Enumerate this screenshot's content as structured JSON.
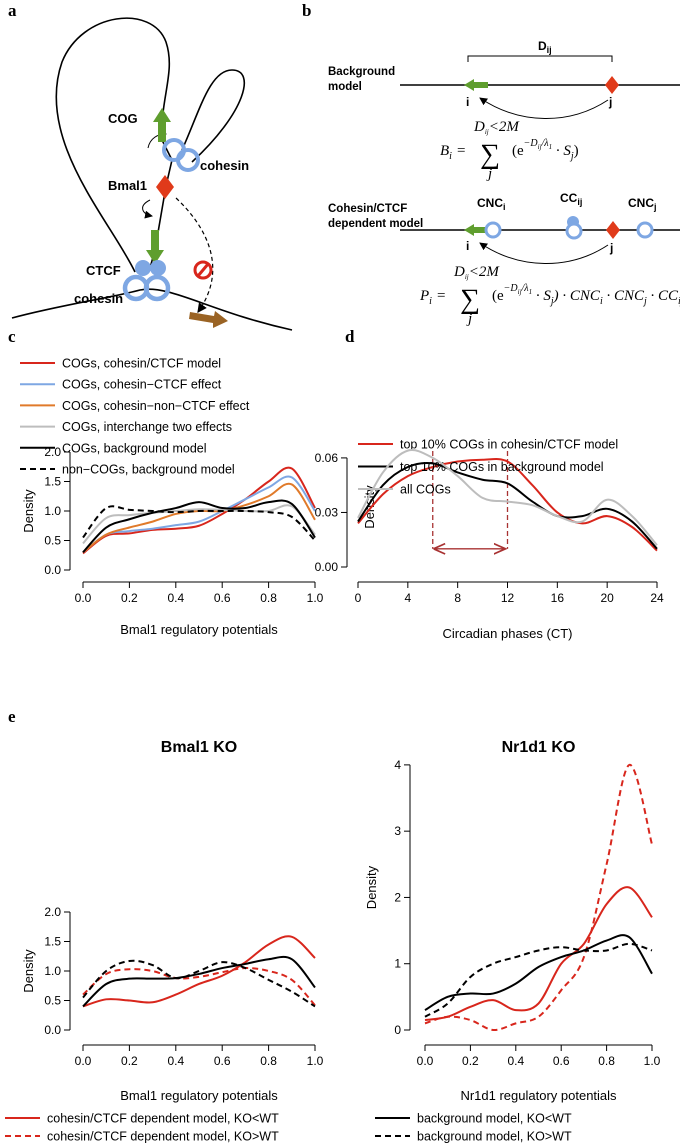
{
  "panel_labels": [
    "a",
    "b",
    "c",
    "d",
    "e"
  ],
  "diagram_a": {
    "cog": "COG",
    "cohesin_top": "cohesin",
    "bmal1": "Bmal1",
    "ctcf": "CTCF",
    "cohesin_bottom": "cohesin"
  },
  "diagram_b": {
    "background_model": [
      "Background",
      "model"
    ],
    "distance": [
      "D",
      "ij"
    ],
    "i": "i",
    "j": "j",
    "formula_b": {
      "lhs": "B",
      "lhs_sub": "i",
      "eq": "=",
      "sum": "∑",
      "upper": [
        "D",
        "ij",
        "<2M"
      ],
      "lower": "j",
      "body": [
        "(e",
        "−D",
        "ij",
        "/λ",
        "1",
        " · S",
        "j",
        ")"
      ]
    },
    "dependent_model": [
      "Cohesin/CTCF",
      "dependent model"
    ],
    "cnc_i": [
      "CNC",
      "i"
    ],
    "cc_ij": [
      "CC",
      "ij"
    ],
    "cnc_j": [
      "CNC",
      "j"
    ],
    "formula_p": {
      "lhs": "P",
      "lhs_sub": "i",
      "eq": "=",
      "sum": "∑",
      "upper": [
        "D",
        "ij",
        "<2M"
      ],
      "lower": "j",
      "body": [
        "(e",
        "−D",
        "ij",
        "/λ",
        "1",
        " · S",
        "j",
        ") · CNC",
        "i",
        " · CNC",
        "j",
        " · CC",
        "ij"
      ]
    }
  },
  "chart_data": [
    {
      "type": "line",
      "xlabel": "Bmal1 regulatory potentials",
      "ylabel": "Density",
      "x": [
        0,
        0.1,
        0.2,
        0.3,
        0.4,
        0.5,
        0.6,
        0.7,
        0.8,
        0.9,
        1.0
      ],
      "xlim": [
        0,
        1
      ],
      "xticks": [
        {
          "value": 0,
          "label": "0.0"
        },
        {
          "value": 0.2,
          "label": "0.2"
        },
        {
          "value": 0.4,
          "label": "0.4"
        },
        {
          "value": 0.6,
          "label": "0.6"
        },
        {
          "value": 0.8,
          "label": "0.8"
        },
        {
          "value": 1,
          "label": "1.0"
        }
      ],
      "ylim": [
        0,
        2
      ],
      "yticks": [
        {
          "value": 0,
          "label": "0.0"
        },
        {
          "value": 0.5,
          "label": "0.5"
        },
        {
          "value": 1,
          "label": "1.0"
        },
        {
          "value": 1.5,
          "label": "1.5"
        },
        {
          "value": 2,
          "label": "2.0"
        }
      ],
      "series": [
        {
          "name": "COGs, cohesin/CTCF model",
          "color": "#d8261c",
          "style": "solid",
          "values": [
            0.28,
            0.58,
            0.62,
            0.68,
            0.7,
            0.75,
            0.95,
            1.2,
            1.5,
            1.72,
            1.05
          ]
        },
        {
          "name": "COGs, cohesin−CTCF effect",
          "color": "#7ea7e3",
          "style": "solid",
          "values": [
            0.3,
            0.6,
            0.66,
            0.7,
            0.76,
            0.82,
            1.0,
            1.2,
            1.4,
            1.57,
            1.0
          ]
        },
        {
          "name": "COGs, cohesin−non−CTCF effect",
          "color": "#e07a2a",
          "style": "solid",
          "values": [
            0.3,
            0.6,
            0.72,
            0.82,
            0.95,
            1.0,
            1.0,
            1.1,
            1.25,
            1.45,
            0.85
          ]
        },
        {
          "name": "COGs, interchange two effects",
          "color": "#bdbdbd",
          "style": "solid",
          "values": [
            0.45,
            0.88,
            0.93,
            0.97,
            1.0,
            1.03,
            1.02,
            1.0,
            1.0,
            1.08,
            0.6
          ]
        },
        {
          "name": "COGs, background model",
          "color": "#000000",
          "style": "solid",
          "values": [
            0.3,
            0.72,
            0.86,
            0.97,
            1.05,
            1.15,
            1.05,
            1.05,
            1.15,
            1.12,
            0.55
          ]
        },
        {
          "name": "non−COGs, background model",
          "color": "#000000",
          "style": "dashed",
          "values": [
            0.55,
            1.05,
            1.02,
            1.0,
            0.98,
            1.0,
            1.0,
            1.0,
            0.98,
            0.9,
            0.5
          ]
        }
      ]
    },
    {
      "type": "line",
      "xlabel": "Circadian phases (CT)",
      "ylabel": "Density",
      "x": [
        0,
        2,
        4,
        6,
        8,
        10,
        12,
        14,
        16,
        18,
        20,
        22,
        24
      ],
      "xlim": [
        0,
        24
      ],
      "xticks": [
        0,
        4,
        8,
        12,
        16,
        20,
        24
      ],
      "ylim": [
        0,
        0.066
      ],
      "yticks": [
        {
          "value": 0,
          "label": "0.00"
        },
        0.03,
        0.06
      ],
      "interval_arrow": {
        "from": 6,
        "to": 12,
        "y": 0.01,
        "color": "#a83232"
      },
      "series": [
        {
          "name": "top 10% COGs in cohesin/CTCF model",
          "color": "#d8261c",
          "style": "solid",
          "values": [
            0.024,
            0.04,
            0.05,
            0.055,
            0.058,
            0.059,
            0.058,
            0.045,
            0.03,
            0.024,
            0.028,
            0.022,
            0.009
          ]
        },
        {
          "name": "top 10% COGs in background model",
          "color": "#000000",
          "style": "solid",
          "values": [
            0.025,
            0.045,
            0.055,
            0.057,
            0.052,
            0.048,
            0.046,
            0.036,
            0.028,
            0.028,
            0.032,
            0.025,
            0.01
          ]
        },
        {
          "name": "all COGs",
          "color": "#bdbdbd",
          "style": "solid",
          "values": [
            0.027,
            0.052,
            0.064,
            0.06,
            0.05,
            0.038,
            0.036,
            0.034,
            0.028,
            0.025,
            0.037,
            0.028,
            0.012
          ]
        }
      ]
    },
    {
      "type": "line",
      "title": "Bmal1 KO",
      "xlabel": "Bmal1 regulatory potentials",
      "ylabel": "Density",
      "x": [
        0,
        0.1,
        0.2,
        0.3,
        0.4,
        0.5,
        0.6,
        0.7,
        0.8,
        0.9,
        1.0
      ],
      "xlim": [
        0,
        1
      ],
      "xticks": [
        {
          "value": 0,
          "label": "0.0"
        },
        {
          "value": 0.2,
          "label": "0.2"
        },
        {
          "value": 0.4,
          "label": "0.4"
        },
        {
          "value": 0.6,
          "label": "0.6"
        },
        {
          "value": 0.8,
          "label": "0.8"
        },
        {
          "value": 1,
          "label": "1.0"
        }
      ],
      "ylim": [
        0,
        2
      ],
      "yticks": [
        {
          "value": 0,
          "label": "0.0"
        },
        {
          "value": 0.5,
          "label": "0.5"
        },
        {
          "value": 1,
          "label": "1.0"
        },
        {
          "value": 1.5,
          "label": "1.5"
        },
        {
          "value": 2,
          "label": "2.0"
        }
      ],
      "series": [
        {
          "name": "cohesin/CTCF dependent model, KO<WT",
          "color": "#d8261c",
          "style": "solid",
          "values": [
            0.4,
            0.52,
            0.5,
            0.47,
            0.6,
            0.78,
            0.92,
            1.15,
            1.45,
            1.58,
            1.22
          ]
        },
        {
          "name": "cohesin/CTCF dependent model, KO>WT",
          "color": "#d8261c",
          "style": "dashed",
          "values": [
            0.6,
            0.95,
            1.03,
            1.0,
            0.88,
            0.9,
            0.98,
            1.05,
            1.0,
            0.85,
            0.42
          ]
        },
        {
          "name": "background model, KO<WT",
          "color": "#000000",
          "style": "solid",
          "values": [
            0.4,
            0.78,
            0.87,
            0.87,
            0.88,
            0.95,
            1.05,
            1.12,
            1.2,
            1.2,
            0.72
          ]
        },
        {
          "name": "background model, KO>WT",
          "color": "#000000",
          "style": "dashed",
          "values": [
            0.55,
            1.0,
            1.17,
            1.1,
            0.88,
            1.0,
            1.15,
            1.05,
            0.85,
            0.65,
            0.4
          ]
        }
      ]
    },
    {
      "type": "line",
      "title": "Nr1d1 KO",
      "xlabel": "Nr1d1 regulatory potentials",
      "ylabel": "Density",
      "x": [
        0,
        0.1,
        0.2,
        0.3,
        0.4,
        0.5,
        0.6,
        0.7,
        0.8,
        0.9,
        1.0
      ],
      "xlim": [
        0,
        1
      ],
      "xticks": [
        {
          "value": 0,
          "label": "0.0"
        },
        {
          "value": 0.2,
          "label": "0.2"
        },
        {
          "value": 0.4,
          "label": "0.4"
        },
        {
          "value": 0.6,
          "label": "0.6"
        },
        {
          "value": 0.8,
          "label": "0.8"
        },
        {
          "value": 1,
          "label": "1.0"
        }
      ],
      "ylim": [
        0,
        4.3
      ],
      "yticks": [
        0,
        1,
        2,
        3,
        4
      ],
      "series": [
        {
          "color": "#d8261c",
          "style": "solid",
          "values": [
            0.15,
            0.2,
            0.35,
            0.45,
            0.3,
            0.4,
            1.0,
            1.3,
            1.9,
            2.15,
            1.7
          ]
        },
        {
          "color": "#d8261c",
          "style": "dashed",
          "values": [
            0.1,
            0.2,
            0.15,
            0.0,
            0.1,
            0.2,
            0.6,
            1.1,
            2.5,
            4.0,
            2.8
          ]
        },
        {
          "color": "#000000",
          "style": "solid",
          "values": [
            0.3,
            0.5,
            0.55,
            0.55,
            0.7,
            0.95,
            1.1,
            1.2,
            1.35,
            1.4,
            0.85
          ]
        },
        {
          "color": "#000000",
          "style": "dashed",
          "values": [
            0.2,
            0.4,
            0.8,
            1.0,
            1.1,
            1.2,
            1.25,
            1.2,
            1.2,
            1.3,
            1.2
          ]
        }
      ]
    }
  ]
}
